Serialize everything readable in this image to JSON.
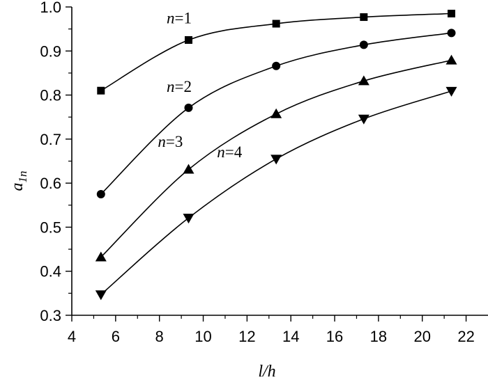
{
  "chart_data": {
    "type": "line",
    "xlabel": "l/h",
    "ylabel": "a1n",
    "ylabel_parts": {
      "main": "a",
      "sub": "1n"
    },
    "xlim": [
      4,
      23
    ],
    "ylim": [
      0.3,
      1.0
    ],
    "x_ticks": [
      4,
      6,
      8,
      10,
      12,
      14,
      16,
      18,
      20,
      22
    ],
    "x_tick_labels": [
      "4",
      "6",
      "8",
      "10",
      "12",
      "14",
      "16",
      "18",
      "20",
      "22"
    ],
    "y_ticks": [
      0.3,
      0.4,
      0.5,
      0.6,
      0.7,
      0.8,
      0.9,
      1.0
    ],
    "y_tick_labels": [
      "0.3",
      "0.4",
      "0.5",
      "0.6",
      "0.7",
      "0.8",
      "0.9",
      "1.0"
    ],
    "grid": false,
    "x": [
      5.33,
      9.33,
      13.33,
      17.33,
      21.33
    ],
    "series": [
      {
        "name": "n=1",
        "label_var": "n",
        "label_eq": "=1",
        "marker": "square",
        "values": [
          0.81,
          0.925,
          0.962,
          0.977,
          0.985
        ],
        "label_at": [
          8.9,
          0.963
        ]
      },
      {
        "name": "n=2",
        "label_var": "n",
        "label_eq": "=2",
        "marker": "circle",
        "values": [
          0.575,
          0.771,
          0.866,
          0.914,
          0.941
        ],
        "label_at": [
          8.9,
          0.807
        ]
      },
      {
        "name": "n=3",
        "label_var": "n",
        "label_eq": "=3",
        "marker": "triangle-up",
        "values": [
          0.432,
          0.631,
          0.757,
          0.832,
          0.879
        ],
        "label_at": [
          8.5,
          0.682
        ]
      },
      {
        "name": "n=4",
        "label_var": "n",
        "label_eq": "=4",
        "marker": "triangle-down",
        "values": [
          0.347,
          0.521,
          0.655,
          0.746,
          0.809
        ],
        "label_at": [
          11.2,
          0.659
        ]
      }
    ]
  }
}
